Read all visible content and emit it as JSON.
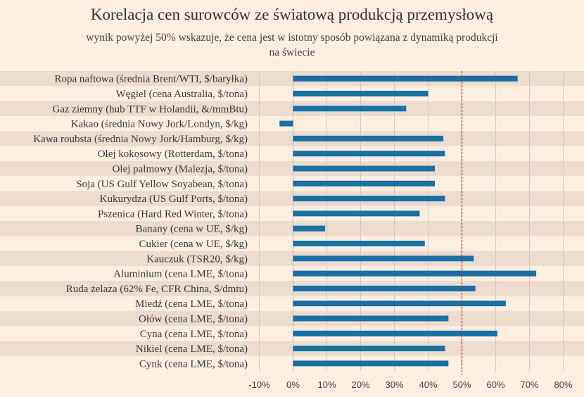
{
  "chart_data": {
    "type": "bar",
    "orientation": "horizontal",
    "title": "Korelacja cen surowców ze światową produkcją przemysłową",
    "subtitle": [
      "wynik powyżej 50% wskazuje, że cena jest w istotny sposób powiązana z dynamiką produkcji",
      "na świecie"
    ],
    "categories": [
      "Ropa naftowa (średnia Brent/WTI, $/baryłka)",
      "Węgiel (cena Australia, $/tona)",
      "Gaz ziemny (hub TTF w Holandii, &/mmBtu)",
      "Kakao (średnia Nowy Jork/Londyn, $/kg)",
      "Kawa roubsta (średnia Nowy Jork/Hamburg, $/kg)",
      "Olej kokosowy (Rotterdam, $/tona)",
      "Olej palmowy (Malezja, $/tona)",
      "Soja (US Gulf Yellow Soyabean, $/tona)",
      "Kukurydza (US Gulf Ports, $/tona)",
      "Pszenica (Hard Red Winter, $/tona)",
      "Banany (cena w UE, $/kg)",
      "Cukier (cena w UE, $/kg)",
      "Kauczuk (TSR20, $/kg)",
      "Aluminium (cena LME, $/tona)",
      "Ruda żelaza (62% Fe, CFR China, $/dmtu)",
      "Miedź (cena LME, $/tona)",
      "Ołów (cena LME, $/tona)",
      "Cyna (cena LME, $/tona)",
      "Nikiel (cena LME, $/tona)",
      "Cynk (cena LME, $/tona)"
    ],
    "values": [
      66.5,
      40,
      33.5,
      -4,
      44.5,
      45,
      42,
      42,
      45,
      37.5,
      9.5,
      39,
      53.5,
      72,
      54,
      63,
      46,
      60.5,
      45,
      46
    ],
    "xlim": [
      -10,
      80
    ],
    "xticks": [
      -10,
      0,
      10,
      20,
      30,
      40,
      50,
      60,
      70,
      80
    ],
    "xtick_labels": [
      "-10%",
      "0%",
      "10%",
      "20%",
      "30%",
      "40%",
      "50%",
      "60%",
      "70%",
      "80%"
    ],
    "reference_line": 50,
    "grid": "vertical",
    "bar_color": "#1a6fa3",
    "reference_line_color": "#b03030"
  }
}
